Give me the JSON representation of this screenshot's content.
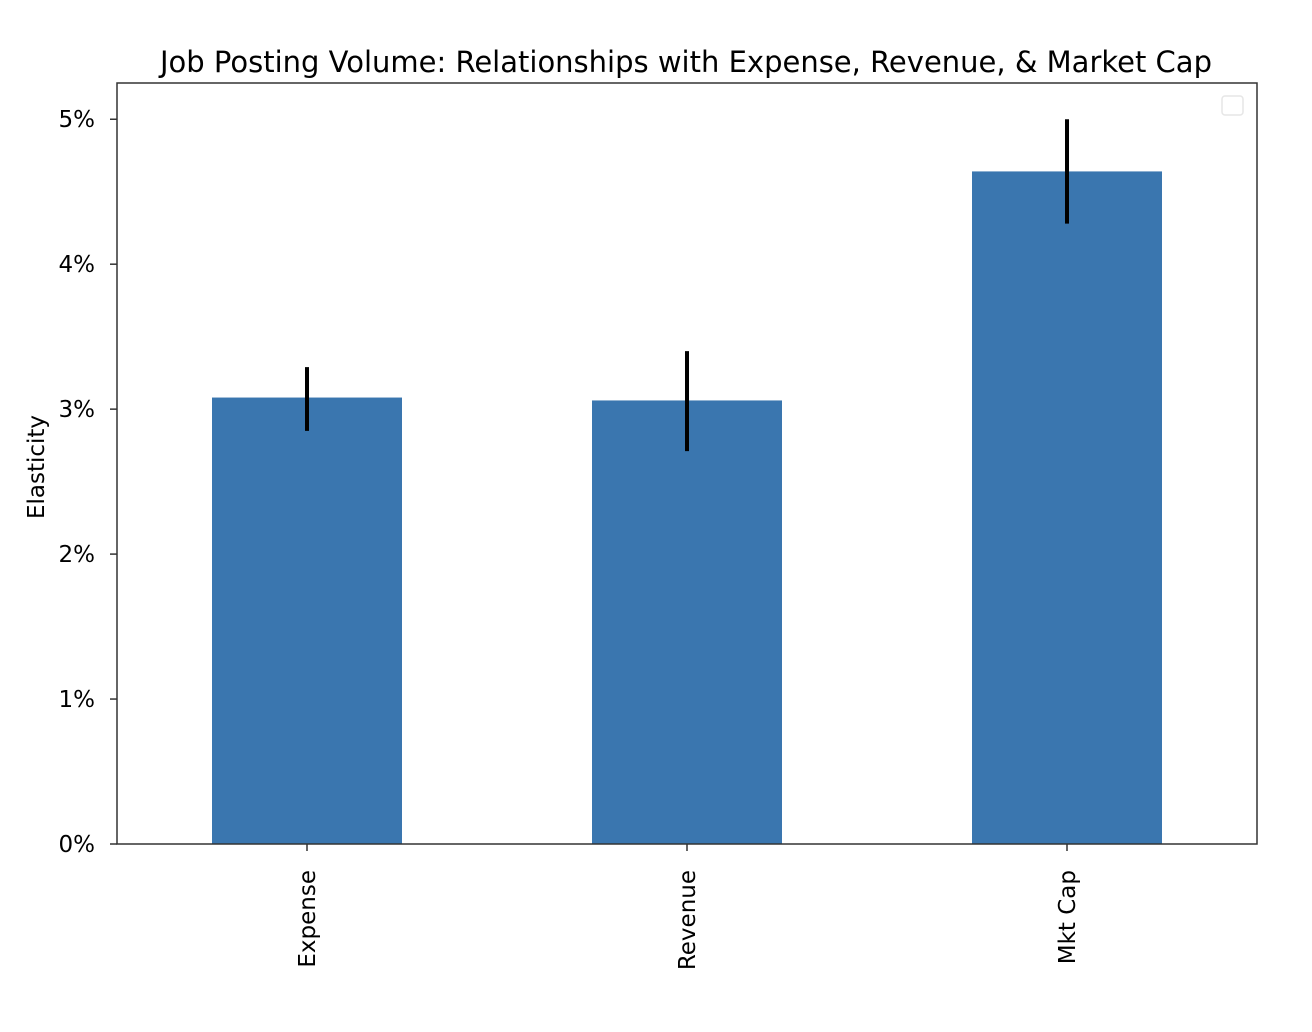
{
  "chart_data": {
    "type": "bar",
    "title": "Job Posting Volume: Relationships with Expense, Revenue, & Market Cap",
    "xlabel": "",
    "ylabel": "Elasticity",
    "categories": [
      "Expense",
      "Revenue",
      "Mkt Cap"
    ],
    "values": [
      0.0308,
      0.0306,
      0.0464
    ],
    "error_bars": [
      {
        "low": 0.0285,
        "high": 0.0329
      },
      {
        "low": 0.0271,
        "high": 0.034
      },
      {
        "low": 0.0428,
        "high": 0.05
      }
    ],
    "ylim": [
      0,
      0.0525
    ],
    "yticks": [
      0,
      0.01,
      0.02,
      0.03,
      0.04,
      0.05
    ],
    "ytick_labels": [
      "0%",
      "1%",
      "2%",
      "3%",
      "4%",
      "5%"
    ],
    "xtick_rotation": "vertical",
    "grid": false,
    "legend": "empty box, top-right",
    "colors": {
      "bar": "#3a76af",
      "error_bar": "#000000",
      "axes": "#333333",
      "legend_border": "#e6e6e6"
    }
  }
}
